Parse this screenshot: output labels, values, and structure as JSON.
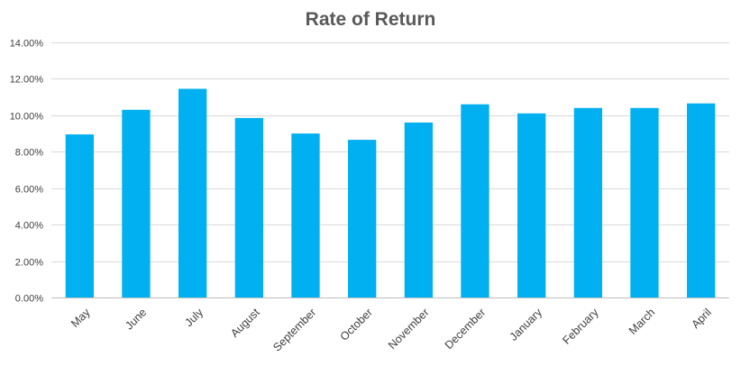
{
  "chart_data": {
    "type": "bar",
    "title": "Rate of Return",
    "xlabel": "",
    "ylabel": "",
    "categories": [
      "May",
      "June",
      "July",
      "August",
      "September",
      "October",
      "November",
      "December",
      "January",
      "February",
      "March",
      "April"
    ],
    "values": [
      8.95,
      10.3,
      11.45,
      9.85,
      9.0,
      8.65,
      9.6,
      10.6,
      10.1,
      10.4,
      10.4,
      10.65
    ],
    "value_format": "percent",
    "ylim": [
      0,
      14
    ],
    "yticks": [
      0,
      2,
      4,
      6,
      8,
      10,
      12,
      14
    ],
    "ytick_labels": [
      "0.00%",
      "2.00%",
      "4.00%",
      "6.00%",
      "8.00%",
      "10.00%",
      "12.00%",
      "14.00%"
    ],
    "grid": true,
    "legend": "none",
    "bar_color": "#00b0f0"
  }
}
